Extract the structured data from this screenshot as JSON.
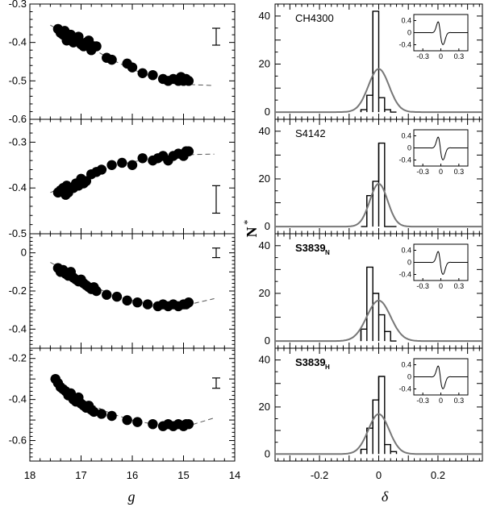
{
  "chart_data": [
    {
      "type": "scatter",
      "panel": "left-1",
      "x_range": [
        18,
        14
      ],
      "ylim": [
        -0.6,
        -0.3
      ],
      "yticks": [
        "-0.3",
        "-0.4",
        "-0.5",
        "-0.6"
      ],
      "x": [
        17.45,
        17.4,
        17.35,
        17.32,
        17.3,
        17.28,
        17.25,
        17.2,
        17.15,
        17.1,
        17.05,
        17.0,
        16.95,
        16.9,
        16.85,
        16.8,
        16.75,
        16.7,
        16.5,
        16.4,
        16.1,
        16.0,
        15.8,
        15.6,
        15.4,
        15.3,
        15.2,
        15.1,
        15.05,
        15.0,
        14.95,
        14.9
      ],
      "y": [
        -0.365,
        -0.375,
        -0.38,
        -0.37,
        -0.385,
        -0.395,
        -0.39,
        -0.38,
        -0.4,
        -0.395,
        -0.385,
        -0.405,
        -0.41,
        -0.4,
        -0.395,
        -0.42,
        -0.41,
        -0.41,
        -0.44,
        -0.445,
        -0.455,
        -0.465,
        -0.48,
        -0.485,
        -0.495,
        -0.5,
        -0.495,
        -0.5,
        -0.49,
        -0.5,
        -0.495,
        -0.5
      ],
      "fit": [
        [
          17.6,
          -0.355
        ],
        [
          17.2,
          -0.385
        ],
        [
          16.8,
          -0.415
        ],
        [
          16.4,
          -0.445
        ],
        [
          16.0,
          -0.47
        ],
        [
          15.6,
          -0.49
        ],
        [
          15.2,
          -0.503
        ],
        [
          14.8,
          -0.51
        ],
        [
          14.4,
          -0.512
        ]
      ],
      "error_bar": {
        "center": -0.385,
        "half": 0.022
      }
    },
    {
      "type": "scatter",
      "panel": "left-2",
      "x_range": [
        18,
        14
      ],
      "ylim": [
        -0.5,
        -0.25
      ],
      "yticks": [
        "-0.3",
        "-0.4",
        "-0.5"
      ],
      "x": [
        17.45,
        17.4,
        17.35,
        17.3,
        17.28,
        17.25,
        17.2,
        17.15,
        17.1,
        17.05,
        17.0,
        16.95,
        16.9,
        16.8,
        16.7,
        16.6,
        16.4,
        16.2,
        16.0,
        15.8,
        15.6,
        15.5,
        15.4,
        15.3,
        15.2,
        15.1,
        15.0,
        14.95,
        14.9
      ],
      "y": [
        -0.41,
        -0.405,
        -0.4,
        -0.415,
        -0.395,
        -0.41,
        -0.4,
        -0.4,
        -0.39,
        -0.395,
        -0.38,
        -0.39,
        -0.385,
        -0.37,
        -0.365,
        -0.36,
        -0.35,
        -0.345,
        -0.35,
        -0.335,
        -0.34,
        -0.335,
        -0.33,
        -0.34,
        -0.33,
        -0.325,
        -0.33,
        -0.32,
        -0.32
      ],
      "fit": [
        [
          17.6,
          -0.41
        ],
        [
          17.2,
          -0.39
        ],
        [
          16.8,
          -0.37
        ],
        [
          16.4,
          -0.353
        ],
        [
          16.0,
          -0.343
        ],
        [
          15.6,
          -0.336
        ],
        [
          15.2,
          -0.33
        ],
        [
          14.8,
          -0.327
        ],
        [
          14.4,
          -0.326
        ]
      ],
      "error_bar": {
        "center": -0.425,
        "half": 0.03
      }
    },
    {
      "type": "scatter",
      "panel": "left-3",
      "x_range": [
        18,
        14
      ],
      "ylim": [
        -0.5,
        0.1
      ],
      "yticks": [
        "0",
        "-0.2",
        "-0.4"
      ],
      "x": [
        17.45,
        17.4,
        17.35,
        17.3,
        17.25,
        17.2,
        17.15,
        17.1,
        17.05,
        17.0,
        16.95,
        16.9,
        16.85,
        16.8,
        16.75,
        16.7,
        16.5,
        16.3,
        16.1,
        15.9,
        15.7,
        15.5,
        15.4,
        15.3,
        15.2,
        15.1,
        15.0,
        14.95,
        14.9
      ],
      "y": [
        -0.08,
        -0.1,
        -0.09,
        -0.11,
        -0.12,
        -0.1,
        -0.13,
        -0.14,
        -0.15,
        -0.14,
        -0.16,
        -0.17,
        -0.18,
        -0.19,
        -0.18,
        -0.2,
        -0.22,
        -0.23,
        -0.25,
        -0.26,
        -0.27,
        -0.28,
        -0.27,
        -0.28,
        -0.27,
        -0.28,
        -0.27,
        -0.27,
        -0.26
      ],
      "fit": [
        [
          17.6,
          -0.05
        ],
        [
          17.2,
          -0.11
        ],
        [
          16.8,
          -0.17
        ],
        [
          16.4,
          -0.22
        ],
        [
          16.0,
          -0.25
        ],
        [
          15.6,
          -0.27
        ],
        [
          15.2,
          -0.275
        ],
        [
          14.8,
          -0.265
        ],
        [
          14.4,
          -0.24
        ]
      ],
      "error_bar": {
        "center": 0.0,
        "half": 0.025
      }
    },
    {
      "type": "scatter",
      "panel": "left-4",
      "x_range": [
        18,
        14
      ],
      "ylim": [
        -0.7,
        -0.15
      ],
      "yticks": [
        "-0.2",
        "-0.4",
        "-0.6"
      ],
      "x": [
        17.5,
        17.45,
        17.4,
        17.35,
        17.3,
        17.25,
        17.2,
        17.15,
        17.1,
        17.05,
        17.0,
        16.95,
        16.9,
        16.85,
        16.8,
        16.75,
        16.6,
        16.4,
        16.1,
        15.9,
        15.6,
        15.4,
        15.3,
        15.2,
        15.1,
        15.0,
        14.95,
        14.9
      ],
      "y": [
        -0.3,
        -0.32,
        -0.34,
        -0.35,
        -0.36,
        -0.38,
        -0.37,
        -0.4,
        -0.41,
        -0.39,
        -0.42,
        -0.43,
        -0.44,
        -0.43,
        -0.45,
        -0.46,
        -0.47,
        -0.48,
        -0.5,
        -0.51,
        -0.52,
        -0.53,
        -0.52,
        -0.53,
        -0.52,
        -0.53,
        -0.52,
        -0.52
      ],
      "fit": [
        [
          17.6,
          -0.3
        ],
        [
          17.2,
          -0.365
        ],
        [
          16.8,
          -0.425
        ],
        [
          16.4,
          -0.47
        ],
        [
          16.0,
          -0.5
        ],
        [
          15.6,
          -0.52
        ],
        [
          15.2,
          -0.53
        ],
        [
          14.8,
          -0.52
        ],
        [
          14.4,
          -0.49
        ]
      ],
      "error_bar": {
        "center": -0.32,
        "half": 0.025
      }
    },
    {
      "type": "bar",
      "panel": "right-1",
      "label": "CH4300",
      "subscript": "",
      "xlim": [
        -0.35,
        0.35
      ],
      "ylim": [
        -3,
        45
      ],
      "bin_edges": [
        -0.06,
        -0.04,
        -0.02,
        0.0,
        0.02,
        0.04,
        0.06
      ],
      "counts": [
        1,
        7,
        42,
        6,
        1,
        0
      ],
      "gauss_peak": 18,
      "gauss_sigma": 0.035,
      "inset": {
        "yticks": [
          "0.4",
          "0",
          "-0.4"
        ],
        "xticks": [
          "-0.3",
          "0",
          "0.3"
        ]
      }
    },
    {
      "type": "bar",
      "panel": "right-2",
      "label": "S4142",
      "subscript": "",
      "xlim": [
        -0.35,
        0.35
      ],
      "ylim": [
        -3,
        45
      ],
      "bin_edges": [
        -0.06,
        -0.04,
        -0.02,
        0.0,
        0.02,
        0.04,
        0.06
      ],
      "counts": [
        0,
        13,
        19,
        35,
        0,
        0
      ],
      "gauss_peak": 18,
      "gauss_sigma": 0.03,
      "inset": {
        "yticks": [
          "0.4",
          "0",
          "-0.4"
        ],
        "xticks": [
          "-0.3",
          "0",
          "0.3"
        ]
      }
    },
    {
      "type": "bar",
      "panel": "right-3",
      "label": "S3839",
      "subscript": "N",
      "xlim": [
        -0.35,
        0.35
      ],
      "ylim": [
        -3,
        45
      ],
      "bin_edges": [
        -0.06,
        -0.04,
        -0.02,
        0.0,
        0.02,
        0.04,
        0.06
      ],
      "counts": [
        5,
        31,
        20,
        11,
        4,
        0
      ],
      "gauss_peak": 17,
      "gauss_sigma": 0.04,
      "inset": {
        "yticks": [
          "0.4",
          "0",
          "-0.4"
        ],
        "xticks": [
          "-0.3",
          "0",
          "0.3"
        ]
      }
    },
    {
      "type": "bar",
      "panel": "right-4",
      "label": "S3839",
      "subscript": "H",
      "xlim": [
        -0.35,
        0.35
      ],
      "ylim": [
        -3,
        45
      ],
      "bin_edges": [
        -0.06,
        -0.04,
        -0.02,
        0.0,
        0.02,
        0.04,
        0.06
      ],
      "counts": [
        2,
        11,
        23,
        33,
        4,
        1
      ],
      "gauss_peak": 17,
      "gauss_sigma": 0.035,
      "inset": {
        "yticks": [
          "0.4",
          "0",
          "-0.4"
        ],
        "xticks": [
          "-0.3",
          "0",
          "0.3"
        ]
      }
    }
  ],
  "left_xticks": [
    "18",
    "17",
    "16",
    "15",
    "14"
  ],
  "right_xticks": [
    "-0.2",
    "0",
    "0.2"
  ],
  "right_yticks": [
    "0",
    "20",
    "40"
  ],
  "left_xlabel": "g",
  "right_xlabel": "δ",
  "right_ylabel": "N",
  "right_ylabel_mark": "*",
  "colors": {
    "points": "#000000",
    "fit": "#555555",
    "gauss": "#777777"
  }
}
